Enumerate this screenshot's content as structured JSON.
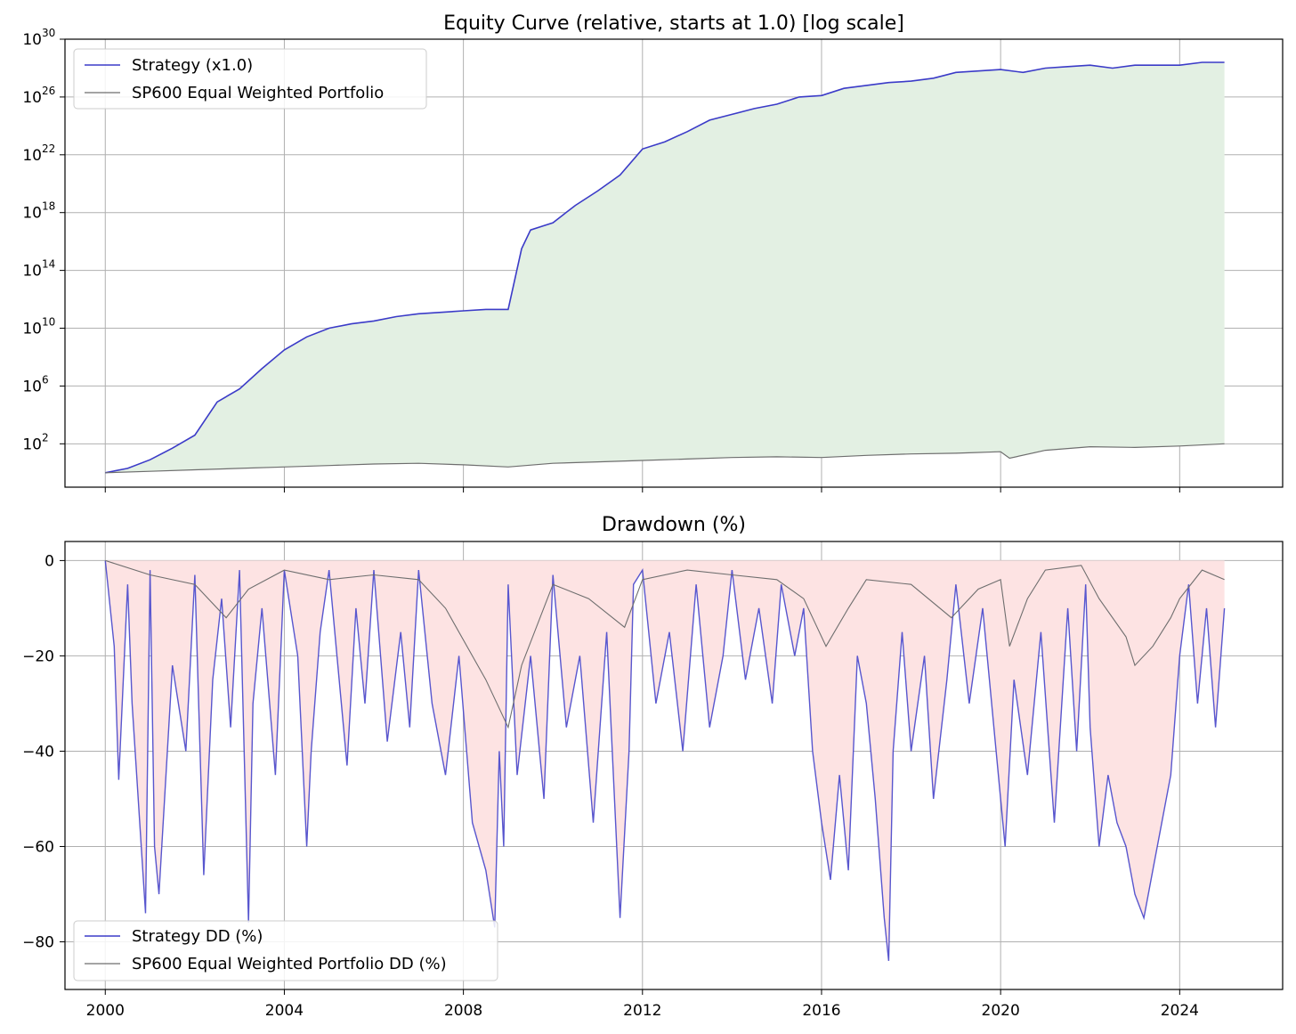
{
  "chart_data": [
    {
      "type": "line",
      "title": "Equity Curve (relative, starts at 1.0) [log scale]",
      "yscale": "log",
      "ylim": [
        0.1,
        1e+30
      ],
      "xlim": [
        1999.1,
        2026.3
      ],
      "x_ticks": [
        2000,
        2004,
        2008,
        2012,
        2016,
        2020,
        2024
      ],
      "y_ticks": [
        {
          "base": "10",
          "exp": "30",
          "value": 30
        },
        {
          "base": "10",
          "exp": "26",
          "value": 26
        },
        {
          "base": "10",
          "exp": "22",
          "value": 22
        },
        {
          "base": "10",
          "exp": "18",
          "value": 18
        },
        {
          "base": "10",
          "exp": "14",
          "value": 14
        },
        {
          "base": "10",
          "exp": "10",
          "value": 10
        },
        {
          "base": "10",
          "exp": "6",
          "value": 6
        },
        {
          "base": "10",
          "exp": "2",
          "value": 2
        }
      ],
      "grid": true,
      "legend_position": "top-left",
      "series": [
        {
          "name": "Strategy (x1.0)",
          "color": "#3b3bc8",
          "x": [
            2000.0,
            2000.5,
            2001.0,
            2001.5,
            2002.0,
            2002.5,
            2003.0,
            2003.5,
            2004.0,
            2004.5,
            2005.0,
            2005.5,
            2006.0,
            2006.5,
            2007.0,
            2007.5,
            2008.0,
            2008.5,
            2009.0,
            2009.3,
            2009.5,
            2010.0,
            2010.5,
            2011.0,
            2011.5,
            2012.0,
            2012.5,
            2013.0,
            2013.5,
            2014.0,
            2014.5,
            2015.0,
            2015.5,
            2016.0,
            2016.5,
            2017.0,
            2017.5,
            2018.0,
            2018.5,
            2019.0,
            2019.5,
            2020.0,
            2020.5,
            2021.0,
            2021.5,
            2022.0,
            2022.5,
            2023.0,
            2023.5,
            2024.0,
            2024.5,
            2025.0
          ],
          "log10_values": [
            0.0,
            0.3,
            0.9,
            1.7,
            2.6,
            4.9,
            5.8,
            7.2,
            8.5,
            9.4,
            10.0,
            10.3,
            10.5,
            10.8,
            11.0,
            11.1,
            11.2,
            11.3,
            11.3,
            15.5,
            16.8,
            17.3,
            18.5,
            19.5,
            20.6,
            22.4,
            22.9,
            23.6,
            24.4,
            24.8,
            25.2,
            25.5,
            26.0,
            26.1,
            26.6,
            26.8,
            27.0,
            27.1,
            27.3,
            27.7,
            27.8,
            27.9,
            27.7,
            28.0,
            28.1,
            28.2,
            28.0,
            28.2,
            28.2,
            28.2,
            28.4,
            28.4
          ]
        },
        {
          "name": "SP600 Equal Weighted Portfolio",
          "color": "#6e6e6e",
          "x": [
            2000.0,
            2001.0,
            2002.0,
            2003.0,
            2004.0,
            2005.0,
            2006.0,
            2007.0,
            2008.0,
            2009.0,
            2010.0,
            2011.0,
            2012.0,
            2013.0,
            2014.0,
            2015.0,
            2016.0,
            2017.0,
            2018.0,
            2019.0,
            2020.0,
            2020.2,
            2021.0,
            2022.0,
            2023.0,
            2024.0,
            2025.0
          ],
          "log10_values": [
            0.0,
            0.1,
            0.2,
            0.3,
            0.4,
            0.5,
            0.6,
            0.65,
            0.55,
            0.4,
            0.65,
            0.75,
            0.85,
            0.95,
            1.05,
            1.1,
            1.05,
            1.2,
            1.3,
            1.35,
            1.45,
            1.0,
            1.55,
            1.8,
            1.75,
            1.85,
            2.0
          ]
        }
      ]
    },
    {
      "type": "line",
      "title": "Drawdown (%)",
      "ylim": [
        -90,
        4
      ],
      "xlim": [
        1999.1,
        2026.3
      ],
      "x_ticks": [
        "2000",
        "2004",
        "2008",
        "2012",
        "2016",
        "2020",
        "2024"
      ],
      "y_ticks": [
        "0",
        "−20",
        "−40",
        "−60",
        "−80"
      ],
      "y_tick_values": [
        0,
        -20,
        -40,
        -60,
        -80
      ],
      "grid": true,
      "legend_position": "bottom-left",
      "series": [
        {
          "name": "Strategy DD (%)",
          "color": "#3b3bc8",
          "x": [
            2000.0,
            2000.2,
            2000.3,
            2000.5,
            2000.6,
            2000.9,
            2001.0,
            2001.1,
            2001.2,
            2001.5,
            2001.8,
            2002.0,
            2002.2,
            2002.4,
            2002.6,
            2002.8,
            2003.0,
            2003.2,
            2003.3,
            2003.5,
            2003.8,
            2004.0,
            2004.3,
            2004.5,
            2004.6,
            2004.8,
            2005.0,
            2005.4,
            2005.6,
            2005.8,
            2006.0,
            2006.3,
            2006.6,
            2006.8,
            2007.0,
            2007.3,
            2007.6,
            2007.9,
            2008.2,
            2008.5,
            2008.7,
            2008.8,
            2008.9,
            2009.0,
            2009.2,
            2009.5,
            2009.8,
            2010.0,
            2010.3,
            2010.6,
            2010.9,
            2011.2,
            2011.5,
            2011.7,
            2011.8,
            2012.0,
            2012.3,
            2012.6,
            2012.9,
            2013.2,
            2013.5,
            2013.8,
            2014.0,
            2014.3,
            2014.6,
            2014.9,
            2015.1,
            2015.4,
            2015.6,
            2015.8,
            2016.0,
            2016.2,
            2016.4,
            2016.6,
            2016.8,
            2017.0,
            2017.2,
            2017.4,
            2017.5,
            2017.6,
            2017.8,
            2018.0,
            2018.3,
            2018.5,
            2018.8,
            2019.0,
            2019.3,
            2019.6,
            2019.9,
            2020.1,
            2020.3,
            2020.6,
            2020.9,
            2021.2,
            2021.5,
            2021.7,
            2021.9,
            2022.0,
            2022.2,
            2022.4,
            2022.6,
            2022.8,
            2023.0,
            2023.2,
            2023.4,
            2023.6,
            2023.8,
            2024.0,
            2024.2,
            2024.4,
            2024.6,
            2024.8,
            2025.0
          ],
          "values": [
            0,
            -18,
            -46,
            -5,
            -30,
            -74,
            -2,
            -60,
            -70,
            -22,
            -40,
            -3,
            -66,
            -25,
            -8,
            -35,
            -2,
            -76,
            -30,
            -10,
            -45,
            -2,
            -20,
            -60,
            -40,
            -15,
            -2,
            -43,
            -10,
            -30,
            -2,
            -38,
            -15,
            -35,
            -2,
            -30,
            -45,
            -20,
            -55,
            -65,
            -77,
            -40,
            -60,
            -5,
            -45,
            -20,
            -50,
            -3,
            -35,
            -20,
            -55,
            -15,
            -75,
            -40,
            -5,
            -2,
            -30,
            -15,
            -40,
            -5,
            -35,
            -20,
            -2,
            -25,
            -10,
            -30,
            -5,
            -20,
            -10,
            -40,
            -55,
            -67,
            -45,
            -65,
            -20,
            -30,
            -50,
            -75,
            -84,
            -40,
            -15,
            -40,
            -20,
            -50,
            -25,
            -5,
            -30,
            -10,
            -40,
            -60,
            -25,
            -45,
            -15,
            -55,
            -10,
            -40,
            -5,
            -35,
            -60,
            -45,
            -55,
            -60,
            -70,
            -75,
            -65,
            -55,
            -45,
            -20,
            -5,
            -30,
            -10,
            -35,
            -10
          ]
        },
        {
          "name": "SP600 Equal Weighted Portfolio DD (%)",
          "color": "#6e6e6e",
          "x": [
            2000.0,
            2001.0,
            2002.0,
            2002.7,
            2003.2,
            2004.0,
            2005.0,
            2006.0,
            2007.0,
            2007.6,
            2008.5,
            2009.0,
            2009.3,
            2010.0,
            2010.8,
            2011.6,
            2012.0,
            2013.0,
            2014.0,
            2015.0,
            2015.6,
            2016.1,
            2016.6,
            2017.0,
            2018.0,
            2018.9,
            2019.5,
            2020.0,
            2020.2,
            2020.6,
            2021.0,
            2021.8,
            2022.2,
            2022.8,
            2023.0,
            2023.4,
            2023.8,
            2024.0,
            2024.5,
            2025.0
          ],
          "values": [
            0,
            -3,
            -5,
            -12,
            -6,
            -2,
            -4,
            -3,
            -4,
            -10,
            -25,
            -35,
            -22,
            -5,
            -8,
            -14,
            -4,
            -2,
            -3,
            -4,
            -8,
            -18,
            -10,
            -4,
            -5,
            -12,
            -6,
            -4,
            -18,
            -8,
            -2,
            -1,
            -8,
            -16,
            -22,
            -18,
            -12,
            -8,
            -2,
            -4
          ]
        }
      ]
    }
  ]
}
